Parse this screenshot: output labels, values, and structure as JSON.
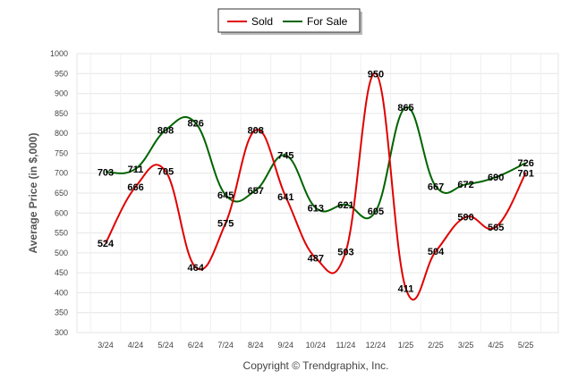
{
  "chart_data": {
    "type": "line",
    "categories": [
      "3/24",
      "4/24",
      "5/24",
      "6/24",
      "7/24",
      "8/24",
      "9/24",
      "10/24",
      "11/24",
      "12/24",
      "1/25",
      "2/25",
      "3/25",
      "4/25",
      "5/25"
    ],
    "series": [
      {
        "name": "Sold",
        "color": "#e00000",
        "values": [
          524,
          666,
          705,
          464,
          575,
          808,
          641,
          487,
          503,
          950,
          411,
          504,
          590,
          565,
          701
        ]
      },
      {
        "name": "For Sale",
        "color": "#006400",
        "values": [
          703,
          711,
          808,
          826,
          645,
          657,
          745,
          613,
          621,
          605,
          865,
          667,
          672,
          690,
          726
        ]
      }
    ],
    "ylabel": "Average Price (in $,000)",
    "yticks": [
      300,
      350,
      400,
      450,
      500,
      550,
      600,
      650,
      700,
      750,
      800,
      850,
      900,
      950,
      1000
    ],
    "ylim": [
      300,
      1000
    ],
    "grid": true,
    "legend_position": "top-center",
    "credit": "Copyright © Trendgraphix, Inc."
  }
}
